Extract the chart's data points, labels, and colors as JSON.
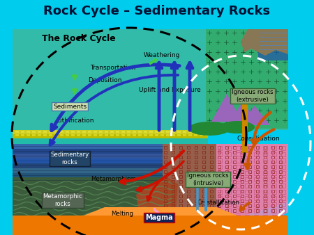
{
  "title": "Rock Cycle – Sedimentary Rocks",
  "title_fontsize": 13,
  "title_color": "#001133",
  "bg_color": "#00CCEE",
  "subtitle": "The Rock Cycle",
  "labels": {
    "weathering": "Weathering",
    "transportation": "Transportation",
    "deposition": "Deposition",
    "uplift": "Uplift and Exposure",
    "sediments": "Sediments",
    "lithification": "Lithification",
    "sedimentary": "Sedimentary\nrocks",
    "metamorphism": "Metamorphism",
    "metamorphic": "Metamorphic\nrocks",
    "melting": "Melting",
    "magma": "Magma",
    "crystallization": "Crystallization",
    "igneous_intrusive": "Igneous rocks\n(intrusive)",
    "igneous_extrusive": "Igneous rocks\n(extrusive)",
    "consolidation": "Consolidation"
  },
  "colors": {
    "bg": "#00CCEE",
    "teal_upper": "#33BBAA",
    "yellow_band": "#CCCC00",
    "yellow_band2": "#AAAA00",
    "cyan_band": "#44BBAA",
    "sedimentary_blue": "#3366AA",
    "sedimentary_dark": "#224466",
    "metamorphic_green": "#3A5C3A",
    "metamorphic_lines": "#5A8A5A",
    "magma_orange": "#EE7700",
    "magma_light": "#FF9922",
    "igneous_intrusive_brown": "#BB4422",
    "igneous_extrusive_green": "#226644",
    "pink_zone": "#EE88BB",
    "pink_dark": "#CC5588",
    "purple_mountain": "#8855AA",
    "orange_lava": "#EE5500",
    "gold_pipe": "#CC8800",
    "red_arrow": "#CC1100",
    "blue_arrow": "#2233BB",
    "orange_arrow": "#CC5500",
    "green_arrow": "#33BB33",
    "cyan_arrow": "#0099AA",
    "white_dot": "#FFFFFF",
    "black_dot": "#000000",
    "sediments_box": "#CCDDAA",
    "igneous_box": "#AACCAA",
    "metamorphic_box": "#778866",
    "magma_box": "#223366",
    "water_blue": "#2255CC",
    "cliff_brown": "#886644",
    "sky_top": "#00BBDD"
  }
}
